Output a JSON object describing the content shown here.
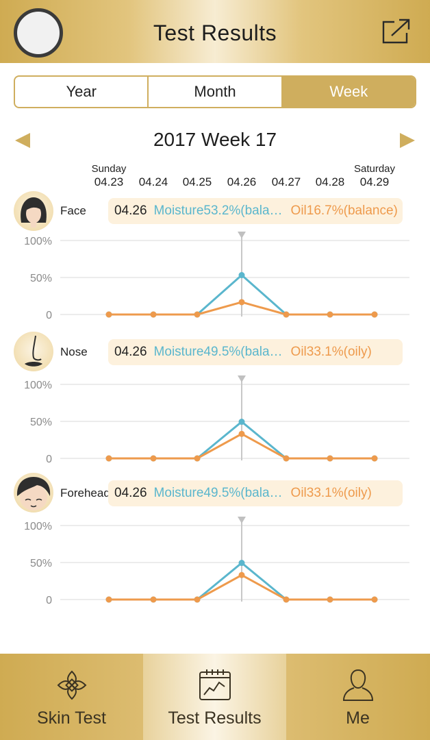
{
  "header": {
    "title": "Test Results"
  },
  "tabs_period": [
    "Year",
    "Month",
    "Week"
  ],
  "active_period": "Week",
  "week": {
    "title": "2017 Week 17",
    "start_day": "Sunday",
    "end_day": "Saturday",
    "dates": [
      "04.23",
      "04.24",
      "04.25",
      "04.26",
      "04.27",
      "04.28",
      "04.29"
    ],
    "selected_date": "04.26"
  },
  "sections": [
    {
      "name": "Face",
      "date": "04.26",
      "moisture_text": "Moisture53.2%(bala…",
      "oil_text": "Oil16.7%(balance)"
    },
    {
      "name": "Nose",
      "date": "04.26",
      "moisture_text": "Moisture49.5%(bala…",
      "oil_text": "Oil33.1%(oily)"
    },
    {
      "name": "Forehead",
      "date": "04.26",
      "moisture_text": "Moisture49.5%(bala…",
      "oil_text": "Oil33.1%(oily)"
    }
  ],
  "y_ticks": [
    "100%",
    "50%",
    "0"
  ],
  "colors": {
    "gold": "#cfae5e",
    "moisture": "#5ab6cd",
    "oil": "#ee9a4c",
    "pill_bg": "#fdf1dd"
  },
  "chart_data": [
    {
      "type": "line",
      "title": "Face",
      "x": [
        "04.23",
        "04.24",
        "04.25",
        "04.26",
        "04.27",
        "04.28",
        "04.29"
      ],
      "ylim": [
        0,
        100
      ],
      "series": [
        {
          "name": "Moisture",
          "values": [
            0,
            0,
            0,
            53.2,
            0,
            0,
            0
          ]
        },
        {
          "name": "Oil",
          "values": [
            0,
            0,
            0,
            16.7,
            0,
            0,
            0
          ]
        }
      ]
    },
    {
      "type": "line",
      "title": "Nose",
      "x": [
        "04.23",
        "04.24",
        "04.25",
        "04.26",
        "04.27",
        "04.28",
        "04.29"
      ],
      "ylim": [
        0,
        100
      ],
      "series": [
        {
          "name": "Moisture",
          "values": [
            0,
            0,
            0,
            49.5,
            0,
            0,
            0
          ]
        },
        {
          "name": "Oil",
          "values": [
            0,
            0,
            0,
            33.1,
            0,
            0,
            0
          ]
        }
      ]
    },
    {
      "type": "line",
      "title": "Forehead",
      "x": [
        "04.23",
        "04.24",
        "04.25",
        "04.26",
        "04.27",
        "04.28",
        "04.29"
      ],
      "ylim": [
        0,
        100
      ],
      "series": [
        {
          "name": "Moisture",
          "values": [
            0,
            0,
            0,
            49.5,
            0,
            0,
            0
          ]
        },
        {
          "name": "Oil",
          "values": [
            0,
            0,
            0,
            33.1,
            0,
            0,
            0
          ]
        }
      ]
    }
  ],
  "bottom_tabs": [
    {
      "label": "Skin Test",
      "icon": "flower-icon"
    },
    {
      "label": "Test Results",
      "icon": "calendar-chart-icon"
    },
    {
      "label": "Me",
      "icon": "person-icon"
    }
  ],
  "active_tab": "Test Results"
}
